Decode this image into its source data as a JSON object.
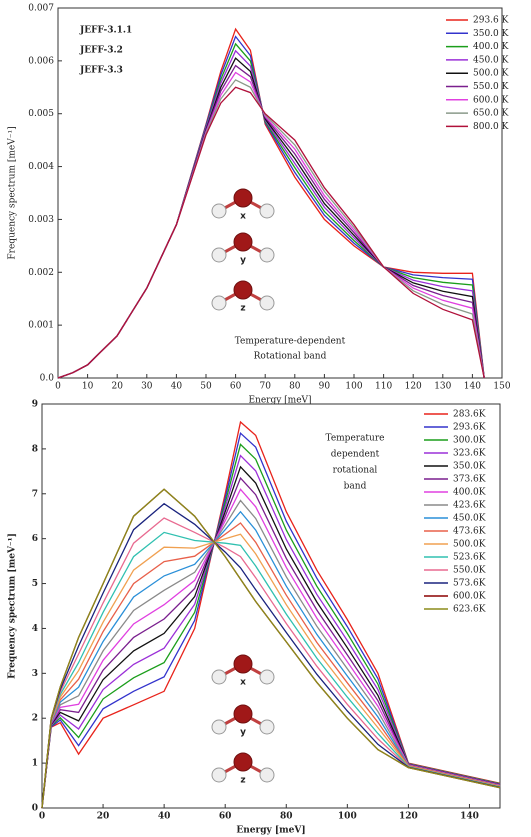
{
  "chart_data": [
    {
      "type": "line",
      "xlabel": "Energy [meV]",
      "ylabel": "Frequency spectrum [meV⁻¹]",
      "annotations": [
        "JEFF-3.1.1",
        "JEFF-3.2",
        "JEFF-3.3",
        "Temperature-dependent",
        "Rotational band"
      ],
      "molecule_labels": [
        "x",
        "y",
        "z"
      ],
      "xlim": [
        0,
        150
      ],
      "xticks": [
        0,
        10,
        20,
        30,
        40,
        50,
        60,
        70,
        80,
        90,
        100,
        110,
        120,
        130,
        140,
        150
      ],
      "ylim": [
        0,
        0.007
      ],
      "yticks": [
        {
          "value": 0,
          "label": "0.0"
        },
        0.001,
        0.002,
        0.003,
        0.004,
        0.005,
        0.006,
        0.007
      ],
      "legend": "upper right",
      "x": [
        0,
        5,
        10,
        20,
        30,
        40,
        50,
        55,
        60,
        65,
        70,
        80,
        90,
        100,
        110,
        120,
        130,
        140,
        144
      ],
      "series": [
        {
          "name": "293.6 K",
          "color": "#e8231b",
          "values": [
            0,
            0.0001,
            0.00025,
            0.0008,
            0.0017,
            0.0029,
            0.0048,
            0.0058,
            0.0066,
            0.0062,
            0.0048,
            0.0038,
            0.003,
            0.0025,
            0.0021,
            0.002,
            0.00198,
            0.00198,
            0
          ]
        },
        {
          "name": "350.0 K",
          "color": "#3333cc",
          "values": [
            0,
            0.0001,
            0.00025,
            0.0008,
            0.0017,
            0.0029,
            0.00478,
            0.00573,
            0.00646,
            0.0061,
            0.00483,
            0.00389,
            0.00308,
            0.00255,
            0.0021,
            0.00195,
            0.0019,
            0.00187,
            0
          ]
        },
        {
          "name": "400.0 K",
          "color": "#1b9e1b",
          "values": [
            0,
            0.0001,
            0.00025,
            0.0008,
            0.0017,
            0.0029,
            0.00475,
            0.00565,
            0.00632,
            0.006,
            0.00485,
            0.00398,
            0.00315,
            0.0026,
            0.0021,
            0.0019,
            0.00181,
            0.00176,
            0
          ]
        },
        {
          "name": "450.0 K",
          "color": "#9b30d8",
          "values": [
            0,
            0.0001,
            0.00025,
            0.0008,
            0.0017,
            0.0029,
            0.00473,
            0.00558,
            0.00619,
            0.0059,
            0.00488,
            0.00406,
            0.00323,
            0.00265,
            0.0021,
            0.00185,
            0.00173,
            0.00165,
            0
          ]
        },
        {
          "name": "500.0 K",
          "color": "#111111",
          "values": [
            0,
            0.0001,
            0.00025,
            0.0008,
            0.0017,
            0.0029,
            0.0047,
            0.0055,
            0.00605,
            0.0058,
            0.0049,
            0.00415,
            0.0033,
            0.0027,
            0.0021,
            0.0018,
            0.00164,
            0.00154,
            0
          ]
        },
        {
          "name": "550.0 K",
          "color": "#7a1f8e",
          "values": [
            0,
            0.0001,
            0.00025,
            0.0008,
            0.0017,
            0.0029,
            0.00468,
            0.00543,
            0.00591,
            0.0057,
            0.00493,
            0.00424,
            0.00338,
            0.00275,
            0.0021,
            0.00175,
            0.00156,
            0.00143,
            0
          ]
        },
        {
          "name": "600.0 K",
          "color": "#e040e0",
          "values": [
            0,
            0.0001,
            0.00025,
            0.0008,
            0.0017,
            0.0029,
            0.00465,
            0.00535,
            0.00578,
            0.0056,
            0.00495,
            0.00433,
            0.00345,
            0.0028,
            0.0021,
            0.0017,
            0.00147,
            0.00132,
            0
          ]
        },
        {
          "name": "650.0 K",
          "color": "#8a9a8a",
          "values": [
            0,
            0.0001,
            0.00025,
            0.0008,
            0.0017,
            0.0029,
            0.00463,
            0.00528,
            0.00564,
            0.0055,
            0.00498,
            0.00441,
            0.00353,
            0.00285,
            0.0021,
            0.00165,
            0.00139,
            0.00121,
            0
          ]
        },
        {
          "name": "800.0 K",
          "color": "#b0103a",
          "values": [
            0,
            0.0001,
            0.00025,
            0.0008,
            0.0017,
            0.0029,
            0.0046,
            0.0052,
            0.0055,
            0.0054,
            0.005,
            0.0045,
            0.0036,
            0.0029,
            0.0021,
            0.0016,
            0.0013,
            0.0011,
            0
          ]
        }
      ]
    },
    {
      "type": "line",
      "xlabel": "Energy [meV]",
      "ylabel": "Frequency spectrum [meV⁻¹]",
      "annotations": [
        "Temperature",
        "dependent",
        "rotational",
        "band"
      ],
      "molecule_labels": [
        "x",
        "y",
        "z"
      ],
      "xlim": [
        0,
        150
      ],
      "xticks": [
        0,
        20,
        40,
        60,
        80,
        100,
        120,
        140
      ],
      "ylim": [
        0,
        9
      ],
      "yticks": [
        0,
        1,
        2,
        3,
        4,
        5,
        6,
        7,
        8,
        9
      ],
      "legend": "upper right",
      "x": [
        0,
        3,
        6,
        12,
        20,
        30,
        40,
        50,
        60,
        65,
        70,
        80,
        90,
        100,
        110,
        120,
        150
      ],
      "series": [
        {
          "name": "283.6K",
          "color": "#e8231b",
          "values": [
            0,
            1.8,
            1.9,
            1.2,
            2.0,
            2.3,
            2.6,
            4.0,
            7.0,
            8.6,
            8.3,
            6.6,
            5.3,
            4.2,
            3.0,
            1.0,
            0.55
          ]
        },
        {
          "name": "293.6K",
          "color": "#3333cc",
          "values": [
            0,
            1.81,
            1.96,
            1.39,
            2.21,
            2.6,
            2.92,
            4.18,
            6.9,
            8.35,
            8.04,
            6.39,
            5.12,
            4.04,
            2.88,
            0.99,
            0.54
          ]
        },
        {
          "name": "300.0K",
          "color": "#1b9e1b",
          "values": [
            0,
            1.83,
            2.01,
            1.57,
            2.43,
            2.9,
            3.24,
            4.36,
            6.8,
            8.1,
            7.77,
            6.19,
            4.94,
            3.89,
            2.76,
            0.99,
            0.54
          ]
        },
        {
          "name": "323.6K",
          "color": "#9b30d8",
          "values": [
            0,
            1.84,
            2.07,
            1.76,
            2.64,
            3.2,
            3.56,
            4.54,
            6.7,
            7.85,
            7.51,
            5.98,
            4.76,
            3.73,
            2.64,
            0.98,
            0.53
          ]
        },
        {
          "name": "350.0K",
          "color": "#111111",
          "values": [
            0,
            1.86,
            2.13,
            1.94,
            2.86,
            3.5,
            3.89,
            4.71,
            6.6,
            7.6,
            7.24,
            5.77,
            4.59,
            3.57,
            2.51,
            0.97,
            0.52
          ]
        },
        {
          "name": "373.6K",
          "color": "#7a1f8e",
          "values": [
            0,
            1.87,
            2.19,
            2.13,
            3.07,
            3.8,
            4.21,
            4.89,
            6.5,
            7.35,
            6.98,
            5.56,
            4.41,
            3.41,
            2.39,
            0.96,
            0.51
          ]
        },
        {
          "name": "400.0K",
          "color": "#e040e0",
          "values": [
            0,
            1.89,
            2.24,
            2.31,
            3.29,
            4.1,
            4.53,
            5.07,
            6.4,
            7.1,
            6.71,
            5.36,
            4.23,
            3.26,
            2.27,
            0.96,
            0.51
          ]
        },
        {
          "name": "423.6K",
          "color": "#8a8a8a",
          "values": [
            0,
            1.9,
            2.3,
            2.5,
            3.5,
            4.4,
            4.85,
            5.25,
            6.3,
            6.85,
            6.45,
            5.15,
            4.05,
            3.1,
            2.15,
            0.95,
            0.5
          ]
        },
        {
          "name": "450.0K",
          "color": "#2a8fd8",
          "values": [
            0,
            1.91,
            2.36,
            2.69,
            3.71,
            4.7,
            5.17,
            5.43,
            6.2,
            6.6,
            6.19,
            4.94,
            3.87,
            2.94,
            2.03,
            0.94,
            0.49
          ]
        },
        {
          "name": "473.6K",
          "color": "#e8604a",
          "values": [
            0,
            1.93,
            2.41,
            2.87,
            3.93,
            5.0,
            5.49,
            5.61,
            6.1,
            6.35,
            5.92,
            4.74,
            3.69,
            2.79,
            1.91,
            0.94,
            0.49
          ]
        },
        {
          "name": "500.0K",
          "color": "#f0a050",
          "values": [
            0,
            1.94,
            2.47,
            3.06,
            4.14,
            5.3,
            5.81,
            5.79,
            6.0,
            6.1,
            5.66,
            4.53,
            3.51,
            2.63,
            1.79,
            0.93,
            0.48
          ]
        },
        {
          "name": "523.6K",
          "color": "#30c0b0",
          "values": [
            0,
            1.96,
            2.53,
            3.24,
            4.36,
            5.6,
            6.14,
            5.96,
            5.9,
            5.85,
            5.39,
            4.32,
            3.34,
            2.47,
            1.66,
            0.92,
            0.47
          ]
        },
        {
          "name": "550.0K",
          "color": "#e86a90",
          "values": [
            0,
            1.97,
            2.59,
            3.43,
            4.57,
            5.9,
            6.46,
            6.14,
            5.8,
            5.6,
            5.13,
            4.11,
            3.16,
            2.31,
            1.54,
            0.91,
            0.46
          ]
        },
        {
          "name": "573.6K",
          "color": "#1a237e",
          "values": [
            0,
            1.99,
            2.64,
            3.61,
            4.79,
            6.2,
            6.78,
            6.32,
            5.7,
            5.35,
            4.86,
            3.91,
            2.98,
            2.16,
            1.42,
            0.91,
            0.46
          ]
        },
        {
          "name": "600.0K",
          "color": "#8b0000",
          "values": [
            0,
            2.0,
            2.7,
            3.8,
            5.0,
            6.5,
            7.1,
            6.5,
            5.6,
            5.1,
            4.6,
            3.7,
            2.8,
            2.0,
            1.3,
            0.9,
            0.45
          ]
        },
        {
          "name": "623.6K",
          "color": "#8b8b1a",
          "values": [
            0,
            2.0,
            2.7,
            3.8,
            5.0,
            6.5,
            7.1,
            6.5,
            5.6,
            5.1,
            4.6,
            3.7,
            2.8,
            2.0,
            1.3,
            0.9,
            0.45
          ]
        }
      ]
    }
  ]
}
